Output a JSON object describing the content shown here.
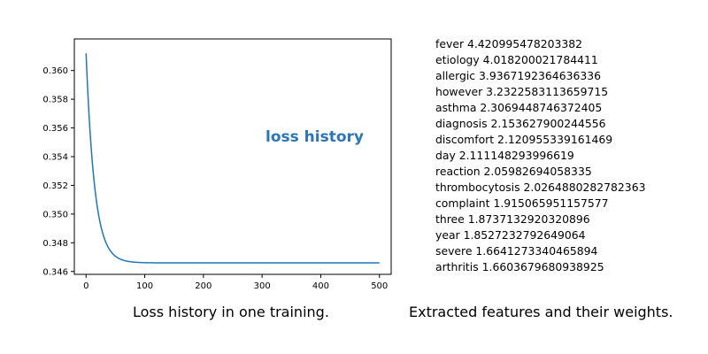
{
  "chart_data": {
    "type": "line",
    "annotation": "loss history",
    "xlim": [
      -20,
      520
    ],
    "ylim": [
      0.3458,
      0.3622
    ],
    "xticks": [
      0,
      100,
      200,
      300,
      400,
      500
    ],
    "yticks": [
      0.346,
      0.348,
      0.35,
      0.352,
      0.354,
      0.356,
      0.358,
      0.36
    ],
    "ytick_labels": [
      "0.346",
      "0.348",
      "0.350",
      "0.352",
      "0.354",
      "0.356",
      "0.358",
      "0.360"
    ],
    "grid": false,
    "series": [
      {
        "color": "#1f77b4",
        "x": [
          0,
          5,
          10,
          15,
          20,
          25,
          30,
          35,
          40,
          50,
          60,
          70,
          80,
          90,
          100,
          120,
          140,
          160,
          200,
          250,
          300,
          400,
          500
        ],
        "y": [
          0.3612,
          0.3583,
          0.3559,
          0.3538,
          0.352,
          0.3505,
          0.3493,
          0.3482,
          0.3474,
          0.3487,
          0.3479,
          0.3474,
          0.3471,
          0.3468,
          0.3467,
          0.3466,
          0.3466,
          0.3466,
          0.3466,
          0.3466,
          0.3466,
          0.3466,
          0.3466
        ]
      }
    ]
  },
  "captions": {
    "left": "Loss history in one training.",
    "right": "Extracted features and their weights."
  },
  "features": [
    "fever 4.420995478203382",
    "etiology 4.018200021784411",
    "allergic 3.9367192364636336",
    "however 3.2322583113659715",
    "asthma 2.3069448746372405",
    "diagnosis 2.153627900244556",
    "discomfort 2.120955339161469",
    "day 2.111148293996619",
    "reaction 2.05982694058335",
    "thrombocytosis 2.0264880282782363",
    "complaint 1.915065951157577",
    "three 1.8737132920320896",
    "year 1.8527232792649064",
    "severe 1.6641273340465894",
    "arthritis 1.6603679680938925"
  ]
}
